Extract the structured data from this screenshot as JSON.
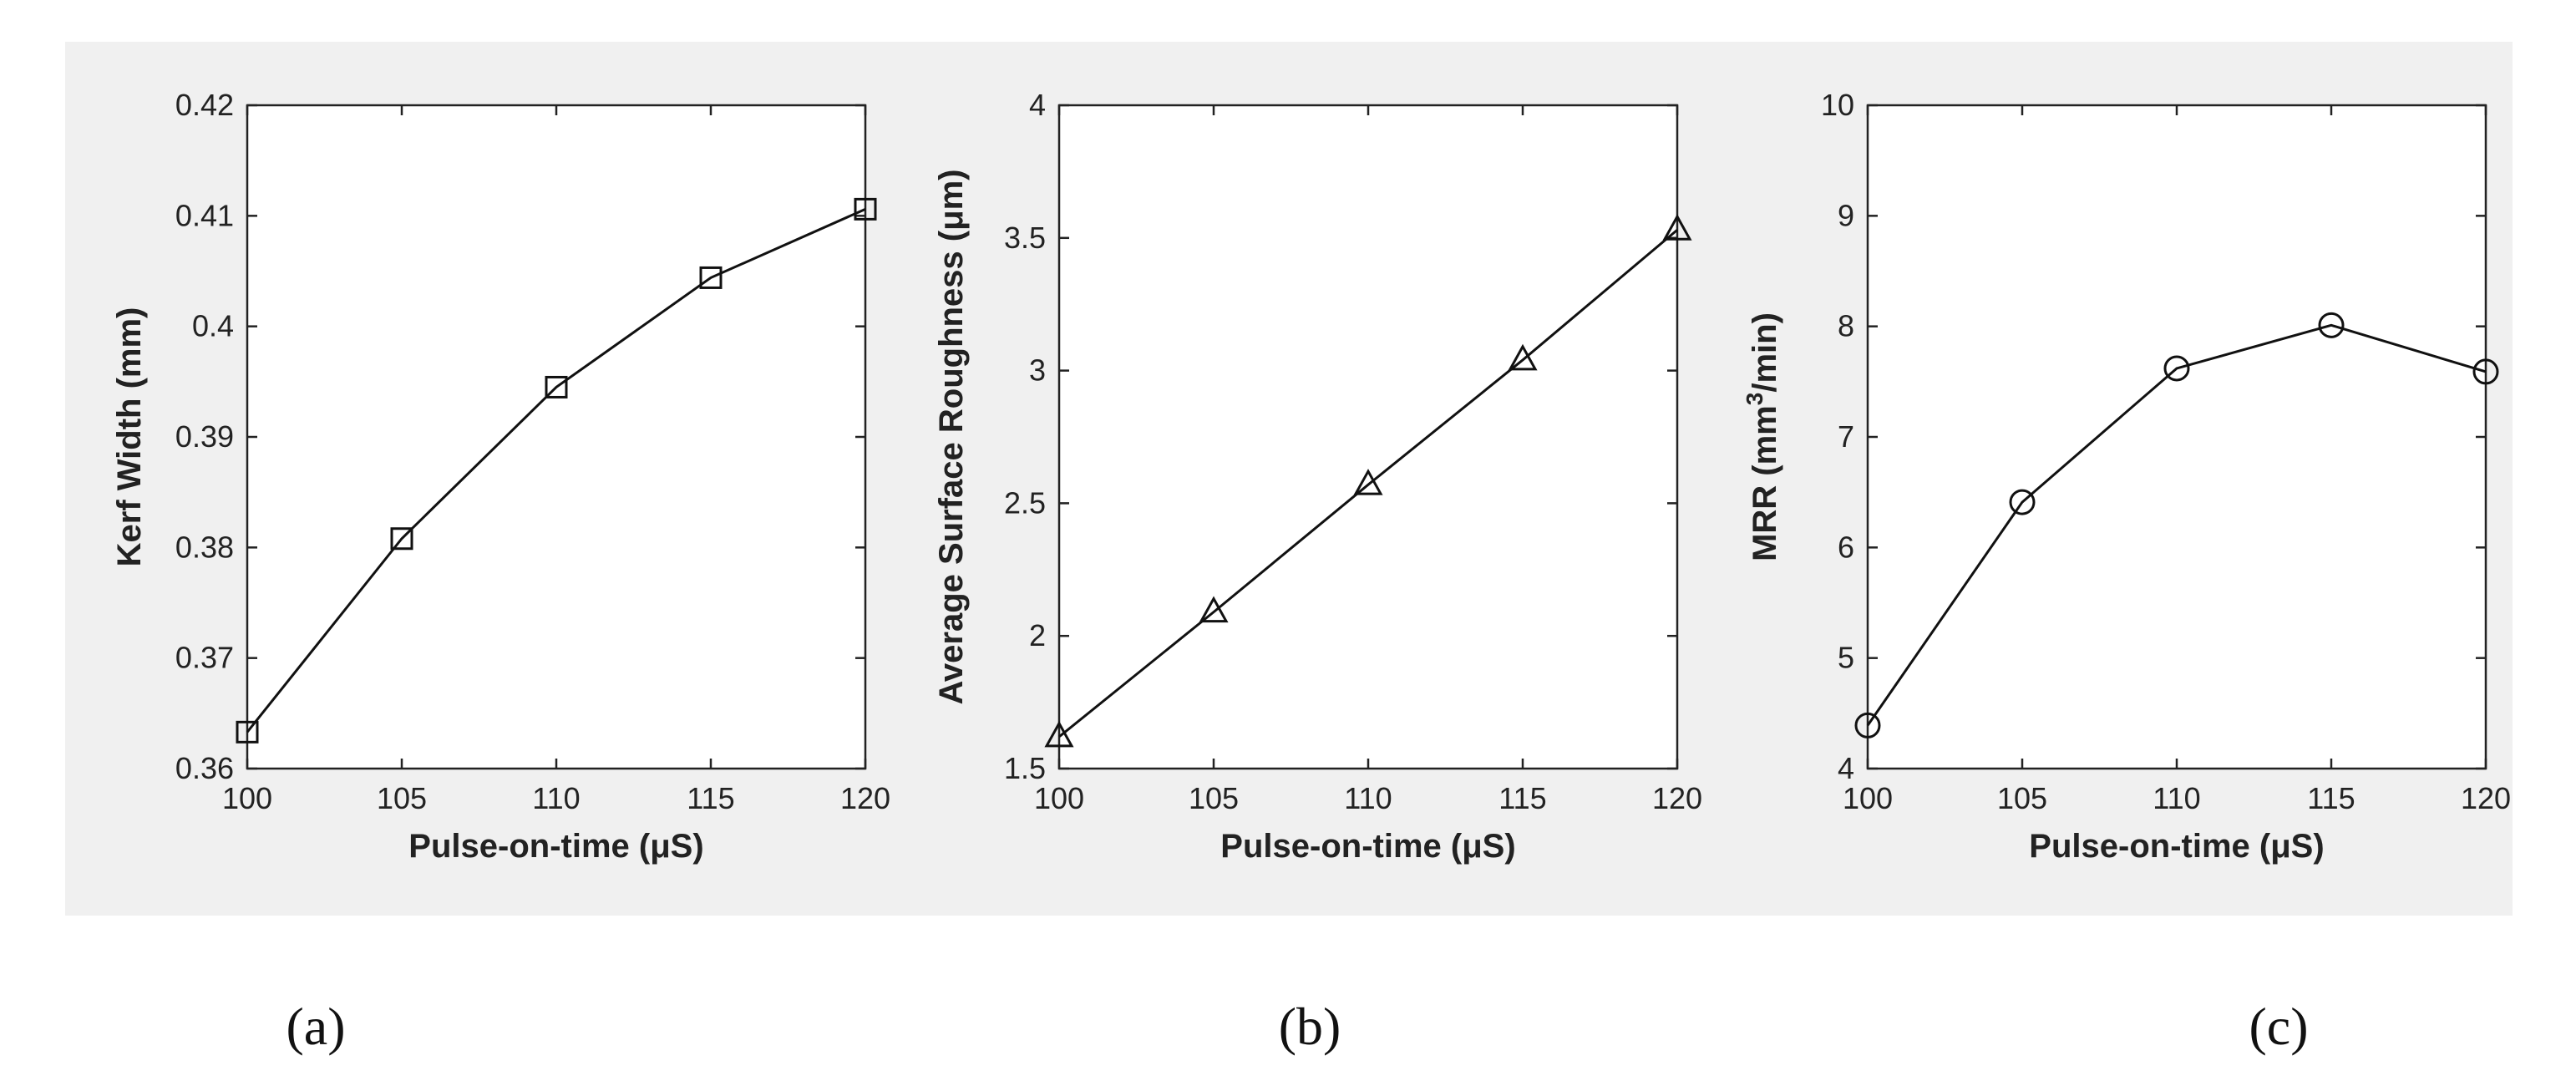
{
  "panel_labels": {
    "a": "(a)",
    "b": "(b)",
    "c": "(c)"
  },
  "chart_data": [
    {
      "type": "line",
      "panel": "a",
      "xlabel": "Pulse-on-time (μS)",
      "ylabel": "Kerf Width (mm)",
      "xlim": [
        100,
        120
      ],
      "ylim": [
        0.36,
        0.42
      ],
      "xticks": [
        "100",
        "105",
        "110",
        "115",
        "120"
      ],
      "yticks": [
        "0.36",
        "0.37",
        "0.38",
        "0.39",
        "0.4",
        "0.41",
        "0.42"
      ],
      "marker": "square",
      "grid": false,
      "x": [
        100,
        105,
        110,
        115,
        120
      ],
      "series": [
        {
          "values": [
            0.3633,
            0.3808,
            0.3945,
            0.4044,
            0.4106
          ]
        }
      ]
    },
    {
      "type": "line",
      "panel": "b",
      "xlabel": "Pulse-on-time (μS)",
      "ylabel": "Average Surface Roughness  (μm)",
      "xlim": [
        100,
        120
      ],
      "ylim": [
        1.5,
        4
      ],
      "xticks": [
        "100",
        "105",
        "110",
        "115",
        "120"
      ],
      "yticks": [
        "1.5",
        "2",
        "2.5",
        "3",
        "3.5",
        "4"
      ],
      "marker": "triangle",
      "grid": false,
      "x": [
        100,
        105,
        110,
        115,
        120
      ],
      "series": [
        {
          "values": [
            1.62,
            2.09,
            2.57,
            3.04,
            3.53
          ]
        }
      ]
    },
    {
      "type": "line",
      "panel": "c",
      "xlabel": "Pulse-on-time (μS)",
      "ylabel_parts": [
        "MRR (mm",
        "3",
        "/min)"
      ],
      "xlim": [
        100,
        120
      ],
      "ylim": [
        4,
        10
      ],
      "xticks": [
        "100",
        "105",
        "110",
        "115",
        "120"
      ],
      "yticks": [
        "4",
        "5",
        "6",
        "7",
        "8",
        "9",
        "10"
      ],
      "marker": "circle",
      "grid": false,
      "x": [
        100,
        105,
        110,
        115,
        120
      ],
      "series": [
        {
          "values": [
            4.39,
            6.41,
            7.62,
            8.01,
            7.59
          ]
        }
      ]
    }
  ]
}
